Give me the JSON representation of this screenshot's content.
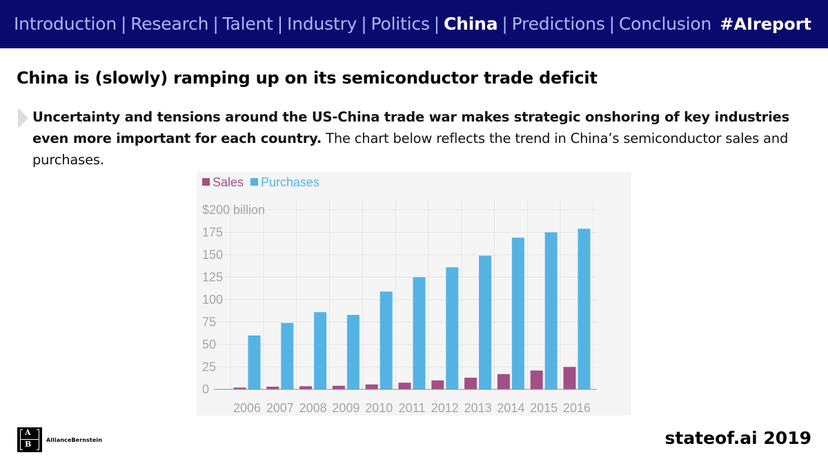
{
  "nav": {
    "items": [
      {
        "label": "Introduction",
        "active": false
      },
      {
        "label": "Research",
        "active": false
      },
      {
        "label": "Talent",
        "active": false
      },
      {
        "label": "Industry",
        "active": false
      },
      {
        "label": "Politics",
        "active": false
      },
      {
        "label": "China",
        "active": true
      },
      {
        "label": "Predictions",
        "active": false
      },
      {
        "label": "Conclusion",
        "active": false
      }
    ],
    "separator": "|",
    "hashtag": "#AIreport"
  },
  "slide": {
    "title": "China is (slowly) ramping up on its semiconductor trade deficit",
    "bullet_bold": "Uncertainty and tensions around the US-China trade war makes strategic onshoring of key industries even more important for each country.",
    "bullet_rest": " The chart below reflects the trend in China’s semiconductor sales and purchases."
  },
  "logo": {
    "mark_top": "A",
    "mark_bottom": "B",
    "name": "AllianceBernstein"
  },
  "footer": {
    "text": "stateof.ai 2019"
  },
  "colors": {
    "nav_bg": "#0a0a6e",
    "sales": "#a24f86",
    "purchases": "#55b3e4"
  },
  "chart_data": {
    "type": "bar",
    "title": "",
    "categories": [
      "2006",
      "2007",
      "2008",
      "2009",
      "2010",
      "2011",
      "2012",
      "2013",
      "2014",
      "2015",
      "2016"
    ],
    "series": [
      {
        "name": "Sales",
        "color": "#a24f86",
        "values": [
          2,
          3,
          3.5,
          4,
          5.5,
          7.5,
          10,
          13,
          17,
          21,
          25
        ]
      },
      {
        "name": "Purchases",
        "color": "#55b3e4",
        "values": [
          60,
          74,
          86,
          83,
          109,
          125,
          136,
          149,
          169,
          175,
          179
        ]
      }
    ],
    "yticks": [
      0,
      25,
      50,
      75,
      100,
      125,
      150,
      175,
      200
    ],
    "ytick_labels": [
      "0",
      "25",
      "50",
      "75",
      "100",
      "125",
      "150",
      "175",
      "$200 billion"
    ],
    "ylim": [
      0,
      200
    ],
    "xlabel": "",
    "ylabel": "",
    "grid": true,
    "legend": "top-left"
  }
}
